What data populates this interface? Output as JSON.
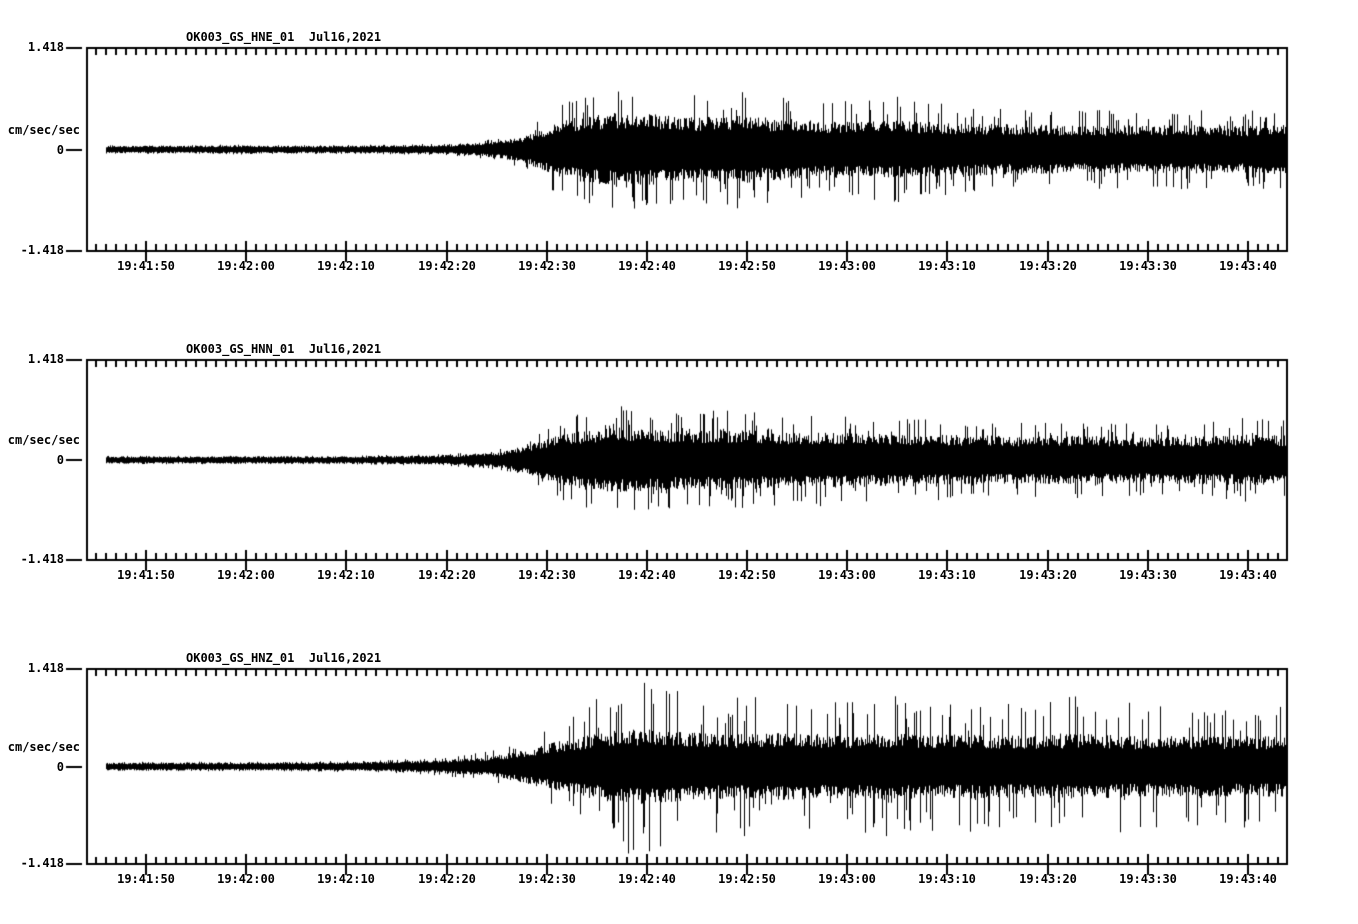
{
  "chart_data": [
    {
      "type": "line",
      "subtype": "seismogram",
      "title": "OK003_GS_HNE_01  Jul16,2021",
      "station_channel": "OK003_GS_HNE_01",
      "date": "Jul16,2021",
      "ylabel": "cm/sec/sec",
      "ylim": [
        -1.418,
        1.418
      ],
      "ytick_labels": {
        "top": "1.418",
        "zero": "0",
        "bottom": "-1.418"
      },
      "x_start": "19:41:44",
      "x_end": "19:43:44",
      "xtick_step_sec": 10,
      "minor_tick_sec": 1,
      "xticks": [
        "19:41:50",
        "19:42:00",
        "19:42:10",
        "19:42:20",
        "19:42:30",
        "19:42:40",
        "19:42:50",
        "19:43:00",
        "19:43:10",
        "19:43:20",
        "19:43:30",
        "19:43:40"
      ],
      "envelope": {
        "description": "Waveform amplitude envelope (cm/sec/sec) vs seconds after 19:41:44. peak = extreme spike amplitude, core = dense band amplitude. Quiet noise until ~19:42:20, P onset ~19:42:22, strong S arrival ~19:42:31, peak shaking 19:42:35-40, sustained coda to end of window.",
        "trace_start_sec": 2,
        "t_sec": [
          0,
          5,
          10,
          15,
          20,
          25,
          30,
          35,
          38,
          41,
          44,
          47,
          50,
          53,
          56,
          60,
          65,
          70,
          75,
          80,
          85,
          90,
          95,
          100,
          105,
          110,
          115,
          120
        ],
        "peak": [
          0.06,
          0.06,
          0.06,
          0.07,
          0.06,
          0.06,
          0.07,
          0.08,
          0.1,
          0.15,
          0.28,
          0.62,
          0.78,
          0.88,
          0.82,
          0.74,
          0.82,
          0.72,
          0.66,
          0.76,
          0.64,
          0.6,
          0.58,
          0.56,
          0.55,
          0.58,
          0.53,
          0.56
        ],
        "core": [
          0.045,
          0.045,
          0.045,
          0.05,
          0.045,
          0.045,
          0.05,
          0.055,
          0.07,
          0.1,
          0.17,
          0.34,
          0.41,
          0.45,
          0.43,
          0.39,
          0.41,
          0.37,
          0.34,
          0.35,
          0.33,
          0.31,
          0.3,
          0.29,
          0.29,
          0.3,
          0.28,
          0.3
        ]
      },
      "line_color": "#000000"
    },
    {
      "type": "line",
      "subtype": "seismogram",
      "title": "OK003_GS_HNN_01  Jul16,2021",
      "station_channel": "OK003_GS_HNN_01",
      "date": "Jul16,2021",
      "ylabel": "cm/sec/sec",
      "ylim": [
        -1.418,
        1.418
      ],
      "ytick_labels": {
        "top": "1.418",
        "zero": "0",
        "bottom": "-1.418"
      },
      "x_start": "19:41:44",
      "x_end": "19:43:44",
      "xtick_step_sec": 10,
      "minor_tick_sec": 1,
      "xticks": [
        "19:41:50",
        "19:42:00",
        "19:42:10",
        "19:42:20",
        "19:42:30",
        "19:42:40",
        "19:42:50",
        "19:43:00",
        "19:43:10",
        "19:43:20",
        "19:43:30",
        "19:43:40"
      ],
      "envelope": {
        "description": "Waveform amplitude envelope (cm/sec/sec) vs seconds after 19:41:44.",
        "trace_start_sec": 2,
        "t_sec": [
          0,
          5,
          10,
          15,
          20,
          25,
          30,
          35,
          38,
          41,
          44,
          47,
          50,
          53,
          56,
          60,
          65,
          70,
          75,
          80,
          85,
          90,
          95,
          100,
          105,
          110,
          115,
          120
        ],
        "peak": [
          0.06,
          0.06,
          0.06,
          0.06,
          0.06,
          0.06,
          0.07,
          0.08,
          0.1,
          0.14,
          0.3,
          0.56,
          0.68,
          0.78,
          0.72,
          0.66,
          0.73,
          0.64,
          0.66,
          0.6,
          0.58,
          0.55,
          0.52,
          0.55,
          0.5,
          0.52,
          0.6,
          0.56
        ],
        "core": [
          0.045,
          0.045,
          0.045,
          0.045,
          0.045,
          0.045,
          0.05,
          0.055,
          0.07,
          0.09,
          0.18,
          0.3,
          0.37,
          0.41,
          0.39,
          0.36,
          0.37,
          0.34,
          0.34,
          0.32,
          0.31,
          0.3,
          0.29,
          0.3,
          0.28,
          0.29,
          0.31,
          0.3
        ]
      },
      "line_color": "#000000"
    },
    {
      "type": "line",
      "subtype": "seismogram",
      "title": "OK003_GS_HNZ_01  Jul16,2021",
      "station_channel": "OK003_GS_HNZ_01",
      "date": "Jul16,2021",
      "ylabel": "cm/sec/sec",
      "ylim": [
        -1.418,
        1.418
      ],
      "ytick_labels": {
        "top": "1.418",
        "zero": "0",
        "bottom": "-1.418"
      },
      "x_start": "19:41:44",
      "x_end": "19:43:44",
      "xtick_step_sec": 10,
      "minor_tick_sec": 1,
      "xticks": [
        "19:41:50",
        "19:42:00",
        "19:42:10",
        "19:42:20",
        "19:42:30",
        "19:42:40",
        "19:42:50",
        "19:43:00",
        "19:43:10",
        "19:43:20",
        "19:43:30",
        "19:43:40"
      ],
      "envelope": {
        "description": "Waveform amplitude envelope (cm/sec/sec) vs seconds after 19:41:44. Vertical channel: largest spikes, near full scale at ~19:42:39, high-amplitude spiky coda persists to end.",
        "trace_start_sec": 2,
        "t_sec": [
          0,
          5,
          10,
          15,
          20,
          25,
          30,
          35,
          38,
          41,
          44,
          47,
          50,
          53,
          56,
          60,
          65,
          70,
          75,
          80,
          85,
          90,
          95,
          100,
          105,
          110,
          115,
          120
        ],
        "peak": [
          0.07,
          0.07,
          0.07,
          0.07,
          0.07,
          0.08,
          0.09,
          0.13,
          0.17,
          0.24,
          0.4,
          0.62,
          0.92,
          1.25,
          1.3,
          1.08,
          1.0,
          1.02,
          0.96,
          1.06,
          0.93,
          0.96,
          0.9,
          1.06,
          0.89,
          0.86,
          0.88,
          0.86
        ],
        "core": [
          0.05,
          0.05,
          0.05,
          0.05,
          0.05,
          0.055,
          0.06,
          0.08,
          0.1,
          0.14,
          0.22,
          0.31,
          0.39,
          0.46,
          0.47,
          0.43,
          0.41,
          0.42,
          0.4,
          0.42,
          0.4,
          0.4,
          0.39,
          0.41,
          0.38,
          0.38,
          0.38,
          0.38
        ]
      },
      "line_color": "#000000"
    }
  ]
}
